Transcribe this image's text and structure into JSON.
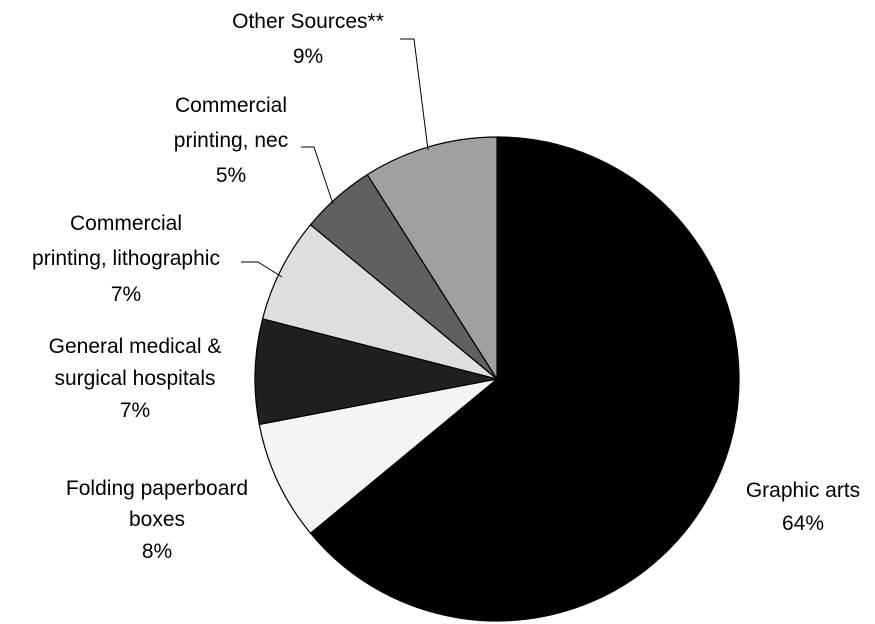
{
  "chart_data": {
    "type": "pie",
    "title": "",
    "start_angle_deg": 0,
    "direction": "clockwise",
    "legend": "none",
    "slices": [
      {
        "label_lines": [
          "Graphic arts"
        ],
        "pct_label": "64%",
        "value": 64,
        "color": "#000000"
      },
      {
        "label_lines": [
          "Folding paperboard",
          "boxes"
        ],
        "pct_label": "8%",
        "value": 8,
        "color": "#f4f4f4"
      },
      {
        "label_lines": [
          "General medical &",
          "surgical hospitals"
        ],
        "pct_label": "7%",
        "value": 7,
        "color": "#202020"
      },
      {
        "label_lines": [
          "Commercial",
          "printing, lithographic"
        ],
        "pct_label": "7%",
        "value": 7,
        "color": "#dedede"
      },
      {
        "label_lines": [
          "Commercial",
          "printing, nec"
        ],
        "pct_label": "5%",
        "value": 5,
        "color": "#606060"
      },
      {
        "label_lines": [
          "Other Sources**"
        ],
        "pct_label": "9%",
        "value": 9,
        "color": "#a0a0a0"
      }
    ]
  }
}
